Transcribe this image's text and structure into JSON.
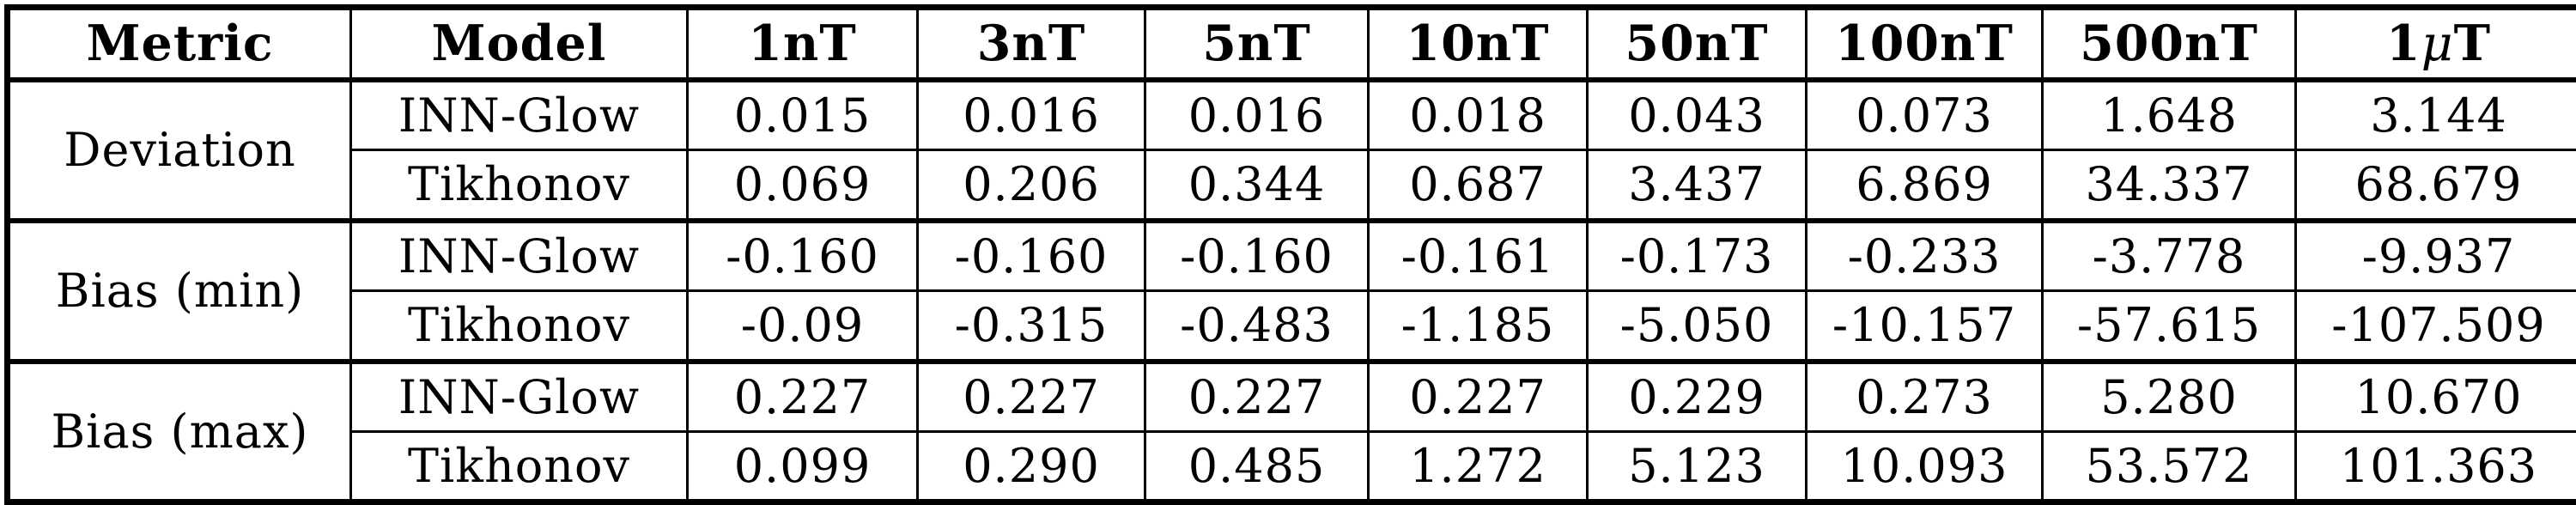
{
  "table": {
    "background_color": "#ffffff",
    "border_color": "#000000",
    "text_color": "#000000",
    "columns": [
      "Metric",
      "Model",
      "1nT",
      "3nT",
      "5nT",
      "10nT",
      "50nT",
      "100nT",
      "500nT",
      "1μT"
    ],
    "groups": [
      {
        "metric": "Deviation",
        "rows": [
          {
            "model": "INN-Glow",
            "values": [
              "0.015",
              "0.016",
              "0.016",
              "0.018",
              "0.043",
              "0.073",
              "1.648",
              "3.144"
            ]
          },
          {
            "model": "Tikhonov",
            "values": [
              "0.069",
              "0.206",
              "0.344",
              "0.687",
              "3.437",
              "6.869",
              "34.337",
              "68.679"
            ]
          }
        ]
      },
      {
        "metric": "Bias (min)",
        "rows": [
          {
            "model": "INN-Glow",
            "values": [
              "-0.160",
              "-0.160",
              "-0.160",
              "-0.161",
              "-0.173",
              "-0.233",
              "-3.778",
              "-9.937"
            ]
          },
          {
            "model": "Tikhonov",
            "values": [
              "-0.09",
              "-0.315",
              "-0.483",
              "-1.185",
              "-5.050",
              "-10.157",
              "-57.615",
              "-107.509"
            ]
          }
        ]
      },
      {
        "metric": "Bias (max)",
        "rows": [
          {
            "model": "INN-Glow",
            "values": [
              "0.227",
              "0.227",
              "0.227",
              "0.227",
              "0.229",
              "0.273",
              "5.280",
              "10.670"
            ]
          },
          {
            "model": "Tikhonov",
            "values": [
              "0.099",
              "0.290",
              "0.485",
              "1.272",
              "5.123",
              "10.093",
              "53.572",
              "101.363"
            ]
          }
        ]
      }
    ]
  }
}
